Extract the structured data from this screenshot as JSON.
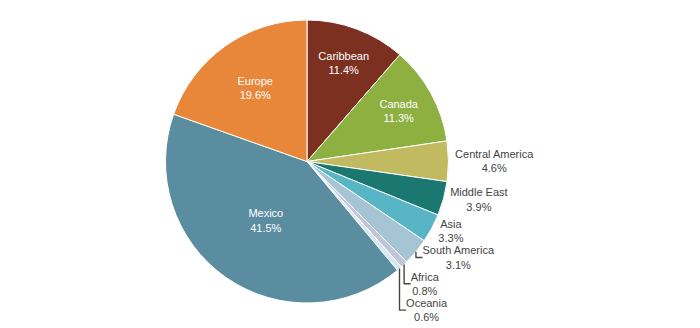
{
  "chart_data": {
    "type": "pie",
    "categories": [
      "Caribbean",
      "Canada",
      "Central America",
      "Middle East",
      "Asia",
      "South America",
      "Africa",
      "Oceania",
      "Mexico",
      "Europe"
    ],
    "values": [
      11.4,
      11.3,
      4.6,
      3.9,
      3.3,
      3.1,
      0.8,
      0.6,
      41.5,
      19.6
    ],
    "value_labels": [
      "11.4%",
      "11.3%",
      "4.6%",
      "3.9%",
      "3.3%",
      "3.1%",
      "0.8%",
      "0.6%",
      "41.5%",
      "19.6%"
    ],
    "colors": [
      "#7b3020",
      "#8db040",
      "#c2ba60",
      "#1a7870",
      "#58b5c5",
      "#a5c5d5",
      "#c0c5d8",
      "#d5e8f0",
      "#5a8da0",
      "#e8863a"
    ],
    "data_labels": true
  }
}
